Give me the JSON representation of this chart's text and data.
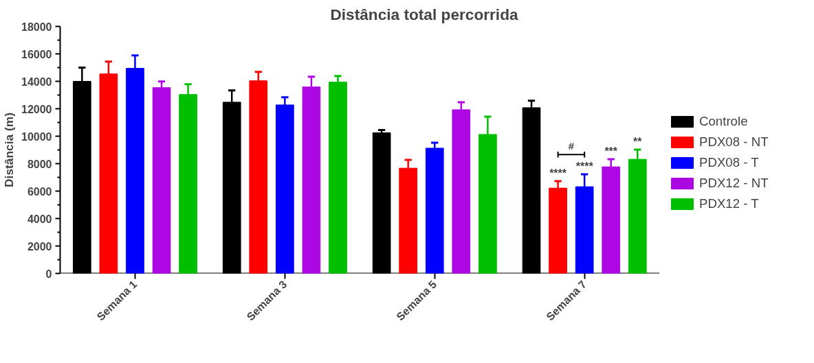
{
  "chart_data": {
    "type": "bar",
    "title": "Distância total percorrida",
    "ylabel": "Distância (m)",
    "categories": [
      "Semana 1",
      "Semana 3",
      "Semana 5",
      "Semana 7"
    ],
    "series": [
      {
        "name": "Controle",
        "color": "#000000",
        "values": [
          14000,
          12480,
          10250,
          12080
        ],
        "errors": [
          [
            14000,
            15000
          ],
          [
            12480,
            13340
          ],
          [
            10250,
            10450
          ],
          [
            12080,
            12590
          ]
        ]
      },
      {
        "name": "PDX08 - NT",
        "color": "#ff0000",
        "values": [
          14540,
          14040,
          7670,
          6220
        ],
        "errors": [
          [
            14540,
            15440
          ],
          [
            14040,
            14690
          ],
          [
            7670,
            8270
          ],
          [
            6220,
            6720
          ]
        ],
        "value_labels": [
          null,
          null,
          null,
          "****"
        ]
      },
      {
        "name": "PDX08 - T",
        "color": "#0000ff",
        "values": [
          14950,
          12280,
          9130,
          6320
        ],
        "errors": [
          [
            14950,
            15890
          ],
          [
            12280,
            12840
          ],
          [
            9130,
            9530
          ],
          [
            6320,
            7220
          ]
        ],
        "value_labels": [
          null,
          null,
          null,
          "****"
        ]
      },
      {
        "name": "PDX12 - NT",
        "color": "#ad07e3",
        "values": [
          13540,
          13590,
          11930,
          7770
        ],
        "errors": [
          [
            13540,
            13990
          ],
          [
            13590,
            14340
          ],
          [
            11930,
            12480
          ],
          [
            7770,
            8320
          ]
        ],
        "value_labels": [
          null,
          null,
          null,
          "***"
        ]
      },
      {
        "name": "PDX12 - T",
        "color": "#00bf00",
        "values": [
          13040,
          13940,
          10130,
          8320
        ],
        "errors": [
          [
            13040,
            13790
          ],
          [
            13940,
            14390
          ],
          [
            10130,
            11430
          ],
          [
            8320,
            9030
          ]
        ],
        "value_labels": [
          null,
          null,
          null,
          "**"
        ]
      }
    ],
    "annotations": [
      "#"
    ],
    "ylim": [
      0,
      18000
    ],
    "yticks": [
      0,
      2000,
      4000,
      6000,
      8000,
      10000,
      12000,
      14000,
      16000,
      18000
    ],
    "grid": false,
    "legend": "right"
  }
}
